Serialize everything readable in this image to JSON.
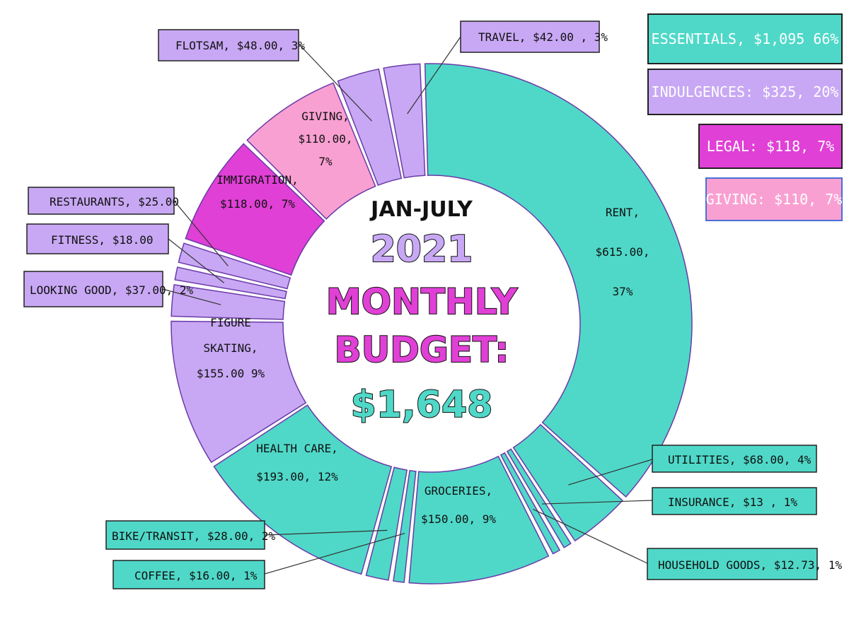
{
  "colors": {
    "essentials": "#4fd8c8",
    "indulgences": "#c8a8f4",
    "legal": "#e040d6",
    "giving": "#f9a0d2",
    "outline": "#6a3aa8"
  },
  "center": {
    "line1": "JAN-JULY",
    "line2": "2021",
    "line3": "MONTHLY",
    "line4": "BUDGET:",
    "line5": "$1,648"
  },
  "summary": [
    {
      "text": "ESSENTIALS, $1,095 66%",
      "group": "essentials"
    },
    {
      "text": "INDULGENCES: $325, 20%",
      "group": "indulgences"
    },
    {
      "text": "LEGAL: $118, 7%",
      "group": "legal"
    },
    {
      "text": "GIVING: $110, 7%",
      "group": "giving"
    }
  ],
  "chart_data": {
    "type": "pie",
    "donut": true,
    "title": "JAN-JULY 2021 MONTHLY BUDGET: $1,648",
    "total": 1648,
    "slices": [
      {
        "name": "RENT",
        "value": 615.0,
        "percent": 37,
        "group": "essentials",
        "label": [
          "RENT,",
          "$615.00,",
          "37%"
        ]
      },
      {
        "name": "UTILITIES",
        "value": 68.0,
        "percent": 4,
        "group": "essentials",
        "label": "UTILITIES, $68.00, 4%"
      },
      {
        "name": "INSURANCE",
        "value": 13,
        "percent": 1,
        "group": "essentials",
        "label": "INSURANCE, $13 , 1%"
      },
      {
        "name": "HOUSEHOLD GOODS",
        "value": 12.73,
        "percent": 1,
        "group": "essentials",
        "label": "HOUSEHOLD GOODS, $12.73, 1%"
      },
      {
        "name": "GROCERIES",
        "value": 150.0,
        "percent": 9,
        "group": "essentials",
        "label": [
          "GROCERIES,",
          "$150.00, 9%"
        ]
      },
      {
        "name": "COFFEE",
        "value": 16.0,
        "percent": 1,
        "group": "essentials",
        "label": "COFFEE, $16.00, 1%"
      },
      {
        "name": "BIKE/TRANSIT",
        "value": 28.0,
        "percent": 2,
        "group": "essentials",
        "label": "BIKE/TRANSIT, $28.00, 2%"
      },
      {
        "name": "HEALTH CARE",
        "value": 193.0,
        "percent": 12,
        "group": "essentials",
        "label": [
          "HEALTH CARE,",
          "$193.00, 12%"
        ]
      },
      {
        "name": "FIGURE SKATING",
        "value": 155.0,
        "percent": 9,
        "group": "indulgences",
        "label": [
          "FIGURE",
          "SKATING,",
          "$155.00   9%"
        ]
      },
      {
        "name": "LOOKING GOOD",
        "value": 37.0,
        "percent": 2,
        "group": "indulgences",
        "label": "LOOKING GOOD, $37.00, 2%"
      },
      {
        "name": "FITNESS",
        "value": 18.0,
        "group": "indulgences",
        "label": "FITNESS, $18.00"
      },
      {
        "name": "RESTAURANTS",
        "value": 25.0,
        "group": "indulgences",
        "label": "RESTAURANTS, $25.00"
      },
      {
        "name": "IMMIGRATION",
        "value": 118.0,
        "percent": 7,
        "group": "legal",
        "label": [
          "IMMIGRATION,",
          "$118.00, 7%"
        ]
      },
      {
        "name": "GIVING",
        "value": 110.0,
        "percent": 7,
        "group": "giving",
        "label": [
          "GIVING,",
          "$110.00,",
          "7%"
        ]
      },
      {
        "name": "FLOTSAM",
        "value": 48.0,
        "percent": 3,
        "group": "indulgences",
        "label": "FLOTSAM, $48.00, 3%"
      },
      {
        "name": "TRAVEL",
        "value": 42.0,
        "percent": 3,
        "group": "indulgences",
        "label": "TRAVEL, $42.00 , 3%"
      }
    ]
  }
}
